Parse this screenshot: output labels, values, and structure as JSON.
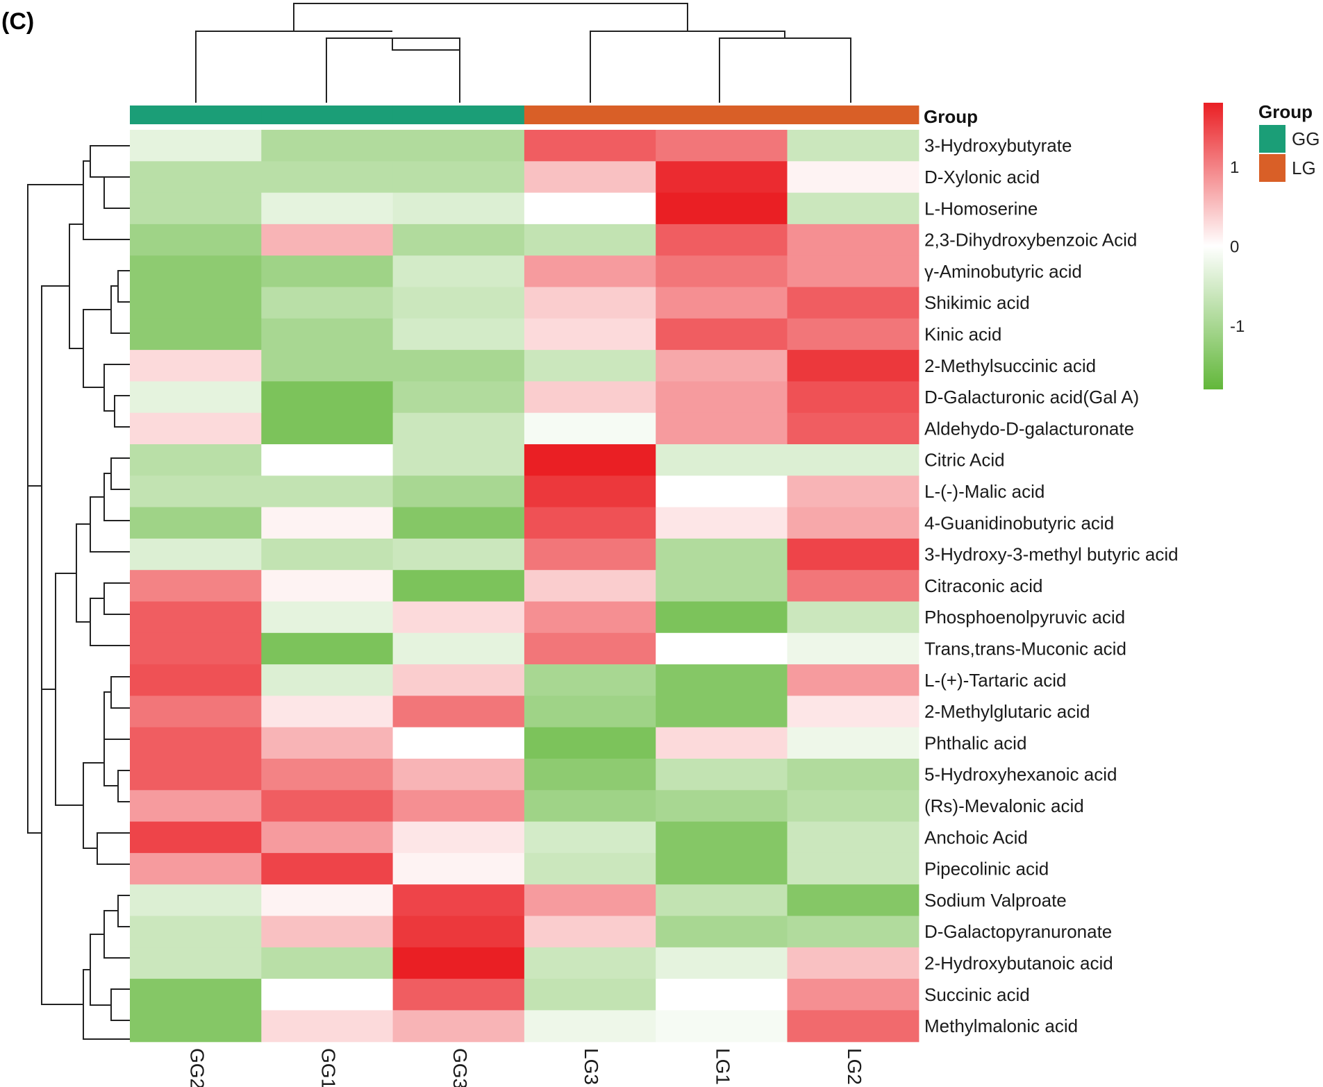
{
  "panel_label": "(C)",
  "chart_data": {
    "type": "heatmap",
    "title": "",
    "columns": [
      "GG2",
      "GG1",
      "GG3",
      "LG3",
      "LG1",
      "LG2"
    ],
    "column_groups": [
      "GG",
      "GG",
      "GG",
      "LG",
      "LG",
      "LG"
    ],
    "group_annotation": {
      "title": "Group",
      "legend_title": "Group",
      "entries": [
        {
          "name": "GG",
          "color": "#1b9e77"
        },
        {
          "name": "LG",
          "color": "#d95f27"
        }
      ]
    },
    "rows": [
      "3-Hydroxybutyrate",
      "D-Xylonic acid",
      "L-Homoserine",
      "2,3-Dihydroxybenzoic Acid",
      "γ-Aminobutyric acid",
      "Shikimic acid",
      "Kinic acid",
      "2-Methylsuccinic acid",
      "D-Galacturonic acid(Gal A)",
      "Aldehydo-D-galacturonate",
      "Citric Acid",
      "L-(-)-Malic acid",
      "4-Guanidinobutyric acid",
      "3-Hydroxy-3-methyl butyric acid",
      "Citraconic acid",
      "Phosphoenolpyruvic acid",
      "Trans,trans-Muconic acid",
      "L-(+)-Tartaric acid",
      "2-Methylglutaric acid",
      "Phthalic acid",
      "5-Hydroxyhexanoic acid",
      "(Rs)-Mevalonic acid",
      "Anchoic Acid",
      "Pipecolinic acid",
      "Sodium Valproate",
      "D-Galactopyranuronate",
      "2-Hydroxybutanoic acid",
      "Succinic acid",
      "Methylmalonic acid"
    ],
    "values": [
      [
        -0.3,
        -0.9,
        -0.9,
        1.3,
        1.1,
        -0.6
      ],
      [
        -0.8,
        -0.8,
        -0.8,
        0.5,
        1.7,
        0.1
      ],
      [
        -0.8,
        -0.3,
        -0.4,
        0.0,
        1.8,
        -0.6
      ],
      [
        -1.1,
        0.6,
        -0.9,
        -0.7,
        1.3,
        0.9
      ],
      [
        -1.3,
        -1.1,
        -0.5,
        0.8,
        1.1,
        0.9
      ],
      [
        -1.3,
        -0.8,
        -0.6,
        0.4,
        0.9,
        1.3
      ],
      [
        -1.3,
        -1.0,
        -0.5,
        0.3,
        1.3,
        1.1
      ],
      [
        0.3,
        -1.0,
        -1.0,
        -0.6,
        0.7,
        1.6
      ],
      [
        -0.3,
        -1.5,
        -0.9,
        0.4,
        0.8,
        1.4
      ],
      [
        0.3,
        -1.5,
        -0.6,
        -0.1,
        0.8,
        1.3
      ],
      [
        -0.8,
        0.0,
        -0.6,
        1.8,
        -0.4,
        -0.4
      ],
      [
        -0.7,
        -0.7,
        -1.0,
        1.6,
        0.0,
        0.6
      ],
      [
        -1.1,
        0.1,
        -1.4,
        1.4,
        0.2,
        0.7
      ],
      [
        -0.4,
        -0.7,
        -0.6,
        1.1,
        -0.9,
        1.5
      ],
      [
        1.0,
        0.1,
        -1.5,
        0.4,
        -0.9,
        1.1
      ],
      [
        1.3,
        -0.3,
        0.3,
        0.9,
        -1.5,
        -0.6
      ],
      [
        1.3,
        -1.5,
        -0.3,
        1.1,
        0.0,
        -0.2
      ],
      [
        1.4,
        -0.4,
        0.4,
        -1.0,
        -1.4,
        0.8
      ],
      [
        1.1,
        0.2,
        1.1,
        -1.1,
        -1.4,
        0.2
      ],
      [
        1.3,
        0.6,
        0.0,
        -1.5,
        0.3,
        -0.2
      ],
      [
        1.3,
        1.0,
        0.6,
        -1.3,
        -0.7,
        -0.9
      ],
      [
        0.8,
        1.3,
        0.9,
        -1.1,
        -1.0,
        -0.8
      ],
      [
        1.5,
        0.8,
        0.2,
        -0.5,
        -1.4,
        -0.6
      ],
      [
        0.8,
        1.5,
        0.1,
        -0.6,
        -1.4,
        -0.6
      ],
      [
        -0.4,
        0.1,
        1.5,
        0.8,
        -0.7,
        -1.4
      ],
      [
        -0.6,
        0.5,
        1.6,
        0.4,
        -1.0,
        -0.9
      ],
      [
        -0.6,
        -0.8,
        1.8,
        -0.6,
        -0.3,
        0.5
      ],
      [
        -1.4,
        0.0,
        1.3,
        -0.7,
        0.0,
        0.9
      ],
      [
        -1.4,
        0.3,
        0.6,
        -0.2,
        -0.1,
        1.2
      ]
    ],
    "color_scale": {
      "min": -1.8,
      "max": 1.8,
      "low_color": "#62b73a",
      "mid_color": "#ffffff",
      "high_color": "#ea1f24",
      "ticks": [
        {
          "value": 1,
          "label": "1"
        },
        {
          "value": 0,
          "label": "0"
        },
        {
          "value": -1,
          "label": "-1"
        }
      ]
    },
    "legend_position": "right"
  }
}
